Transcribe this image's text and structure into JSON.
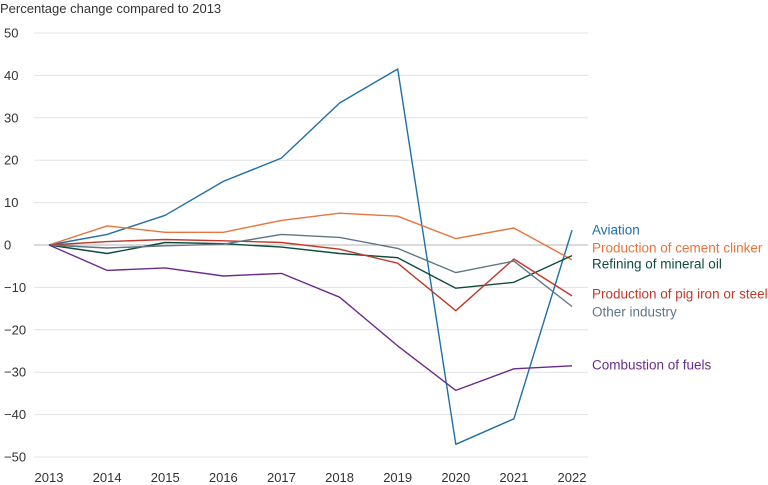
{
  "chart_data": {
    "type": "line",
    "ylabel": "Percentage change compared to 2013",
    "x": [
      "2013",
      "2014",
      "2015",
      "2016",
      "2017",
      "2018",
      "2019",
      "2020",
      "2021",
      "2022"
    ],
    "ylim": [
      -50,
      50
    ],
    "yticks": [
      50,
      40,
      30,
      20,
      10,
      0,
      -10,
      -20,
      -30,
      -40,
      -50
    ],
    "grid": true,
    "legend": "right",
    "series": [
      {
        "name": "Aviation",
        "color": "#1f6fa8",
        "values": [
          0,
          2.5,
          7,
          15,
          20.5,
          33.5,
          41.5,
          -47,
          -41,
          3.5
        ]
      },
      {
        "name": "Production of cement clinker",
        "color": "#e8743b",
        "values": [
          0,
          4.5,
          3,
          3,
          5.8,
          7.5,
          6.8,
          1.5,
          4,
          -3.5
        ]
      },
      {
        "name": "Refining of mineral oil",
        "color": "#0d4d3e",
        "values": [
          0,
          -2,
          0.6,
          0.3,
          -0.5,
          -2,
          -3,
          -10.2,
          -8.8,
          -2.5
        ]
      },
      {
        "name": "Production of pig iron or steel",
        "color": "#c0392b",
        "values": [
          0,
          0.8,
          1.3,
          1,
          0.6,
          -1,
          -4.3,
          -15.5,
          -3.3,
          -12
        ]
      },
      {
        "name": "Other industry",
        "color": "#5f7785",
        "values": [
          0,
          -0.7,
          -0.2,
          0.2,
          2.5,
          1.8,
          -0.8,
          -6.5,
          -3.8,
          -14.5
        ]
      },
      {
        "name": "Combustion of fuels",
        "color": "#6a2c8a",
        "values": [
          0,
          -6,
          -5.4,
          -7.3,
          -6.7,
          -12.3,
          -23.8,
          -34.3,
          -29.2,
          -28.5
        ]
      }
    ]
  }
}
